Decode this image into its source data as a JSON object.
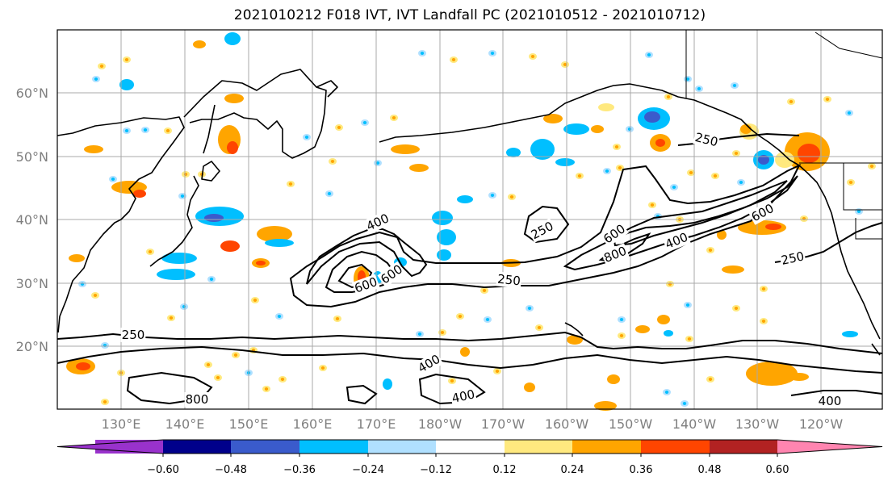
{
  "title": "2021010212 F018 IVT, IVT Landfall PC (2021010512 - 2021010712)",
  "map": {
    "lat_labels": [
      "60°N",
      "50°N",
      "40°N",
      "30°N",
      "20°N"
    ],
    "lon_labels": [
      "130°E",
      "140°E",
      "150°E",
      "160°E",
      "170°E",
      "180°W",
      "170°W",
      "160°W",
      "150°W",
      "140°W",
      "130°W",
      "120°W"
    ],
    "contour_labels": [
      "250",
      "250",
      "250",
      "250",
      "250",
      "400",
      "400",
      "400",
      "400",
      "400",
      "600",
      "600",
      "600",
      "600",
      "800",
      "800"
    ],
    "contour_levels": [
      250,
      400,
      600,
      800
    ]
  },
  "colorbar": {
    "tick_labels": [
      "−0.60",
      "−0.48",
      "−0.36",
      "−0.24",
      "−0.12",
      "0.12",
      "0.24",
      "0.36",
      "0.48",
      "0.60"
    ],
    "colors": [
      "#9932cc",
      "#00008b",
      "#3a5bcc",
      "#00bfff",
      "#b0e0ff",
      "#ffffff",
      "#ffe97f",
      "#ffa500",
      "#ff4500",
      "#b22222",
      "#ff85b0"
    ]
  },
  "colors": {
    "pos_weak": "#ffe97f",
    "pos_mid": "#ffa500",
    "pos_strong": "#ff4500",
    "neg_weak": "#b0e0ff",
    "neg_mid": "#00bfff",
    "neg_strong": "#3a5bcc",
    "grid": "#a9a9a9"
  }
}
